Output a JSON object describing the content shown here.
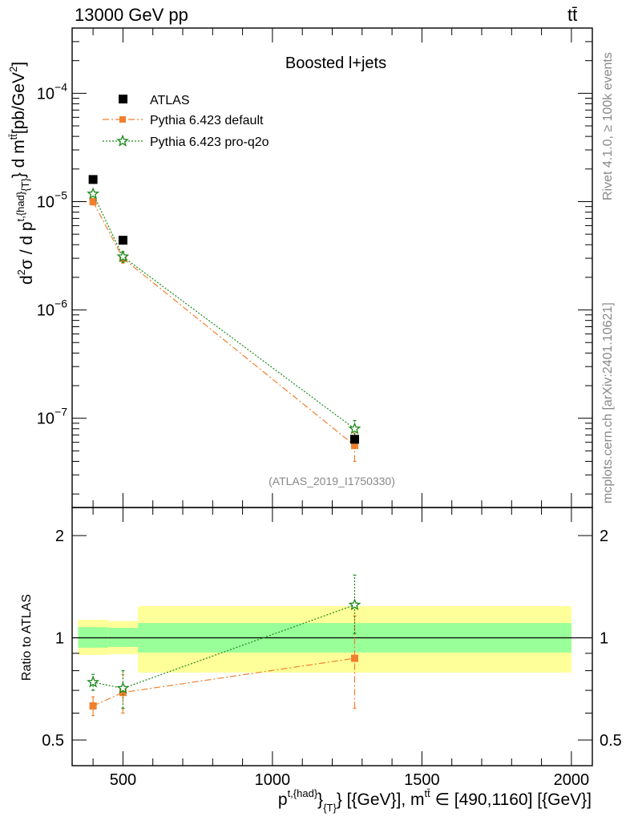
{
  "header": {
    "left": "13000 GeV pp",
    "right": "tt̄"
  },
  "side_labels": {
    "top": "Rivet 4.1.0, ≥ 100k events",
    "bottom": "mcplots.cern.ch [arXiv:2401.10621]"
  },
  "colors": {
    "atlas": "#000000",
    "default": "#f07f2e",
    "proq2o": "#1a8a1a",
    "band_inner": "#99ff99",
    "band_outer": "#ffff99"
  },
  "chart_data": [
    {
      "type": "scatter",
      "panel": "main",
      "title": "Boosted l+jets",
      "watermark": "(ATLAS_2019_I1750330)",
      "ylabel": {
        "a": "d",
        "b": "σ / d p",
        "c": "} d m",
        "d": "[pb/GeV",
        "e": "]",
        "sup1": "2",
        "sup2": "t,{had}",
        "sub": "{T}",
        "sup3": "tt̄",
        "sup4": "2"
      },
      "yscale": "log",
      "ylim": [
        1.5e-08,
        0.0004
      ],
      "xlim": [
        330,
        2070
      ],
      "yticks": [
        {
          "value": 1e-07,
          "mant": "10",
          "exp": "−7"
        },
        {
          "value": 1e-06,
          "mant": "10",
          "exp": "−6"
        },
        {
          "value": 1e-05,
          "mant": "10",
          "exp": "−5"
        },
        {
          "value": 0.0001,
          "mant": "10",
          "exp": "−4"
        }
      ],
      "legend": [
        {
          "key": "atlas",
          "label": "ATLAS"
        },
        {
          "key": "default",
          "label": "Pythia 6.423 default"
        },
        {
          "key": "proq2o",
          "label": "Pythia 6.423 pro-q2o"
        }
      ],
      "series": [
        {
          "key": "atlas",
          "name": "ATLAS",
          "x": [
            400,
            500,
            1275
          ],
          "y": [
            1.6e-05,
            4.4e-06,
            6.4e-08
          ]
        },
        {
          "key": "default",
          "name": "Pythia 6.423 default",
          "x": [
            400,
            500,
            1275
          ],
          "y": [
            1e-05,
            3e-06,
            5.6e-08
          ],
          "yerr_low": [
            9.3e-06,
            2.7e-06,
            4e-08
          ],
          "yerr_high": [
            1.07e-05,
            3.3e-06,
            7.3e-08
          ]
        },
        {
          "key": "proq2o",
          "name": "Pythia 6.423 pro-q2o",
          "x": [
            400,
            500,
            1275
          ],
          "y": [
            1.18e-05,
            3.1e-06,
            8e-08
          ],
          "yerr_low": [
            1.12e-05,
            2.75e-06,
            6.6e-08
          ],
          "yerr_high": [
            1.24e-05,
            3.45e-06,
            9.5e-08
          ]
        }
      ]
    },
    {
      "type": "scatter",
      "panel": "ratio",
      "ylabel": "Ratio to ATLAS",
      "xlabel": {
        "a": "p",
        "sup1": "t,{had}",
        "b": "}",
        "sub": "{T}",
        "c": "} [{GeV}], m",
        "sup2": "tt̄",
        "d": " ∈ [490,1160] [{GeV}]"
      },
      "yscale": "log",
      "ylim": [
        0.42,
        2.42
      ],
      "xlim": [
        330,
        2070
      ],
      "yticks": [
        {
          "value": 0.5,
          "label": "0.5"
        },
        {
          "value": 1,
          "label": "1"
        },
        {
          "value": 2,
          "label": "2"
        }
      ],
      "xticks": [
        {
          "value": 500,
          "label": "500"
        },
        {
          "value": 1000,
          "label": "1000"
        },
        {
          "value": 1500,
          "label": "1500"
        },
        {
          "value": 2000,
          "label": "2000"
        }
      ],
      "bands": [
        {
          "x0": 350,
          "x1": 450,
          "inner": [
            0.935,
            1.075
          ],
          "outer": [
            0.89,
            1.13
          ]
        },
        {
          "x0": 450,
          "x1": 550,
          "inner": [
            0.94,
            1.07
          ],
          "outer": [
            0.895,
            1.12
          ]
        },
        {
          "x0": 550,
          "x1": 2000,
          "inner": [
            0.905,
            1.105
          ],
          "outer": [
            0.79,
            1.24
          ]
        }
      ],
      "series": [
        {
          "key": "default",
          "name": "Pythia 6.423 default",
          "x": [
            400,
            500,
            1275
          ],
          "y": [
            0.63,
            0.69,
            0.87
          ],
          "yerr_low": [
            0.59,
            0.6,
            0.62
          ],
          "yerr_high": [
            0.67,
            0.78,
            1.16
          ]
        },
        {
          "key": "proq2o",
          "name": "Pythia 6.423 pro-q2o",
          "x": [
            400,
            500,
            1275
          ],
          "y": [
            0.74,
            0.71,
            1.25
          ],
          "yerr_low": [
            0.7,
            0.62,
            1.03
          ],
          "yerr_high": [
            0.78,
            0.8,
            1.53
          ]
        }
      ]
    }
  ]
}
